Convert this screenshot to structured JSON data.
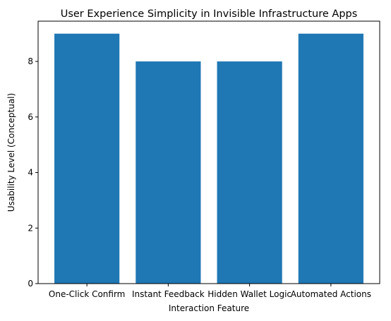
{
  "chart_data": {
    "type": "bar",
    "title": "User Experience Simplicity in Invisible Infrastructure Apps",
    "xlabel": "Interaction Feature",
    "ylabel": "Usability Level (Conceptual)",
    "categories": [
      "One-Click Confirm",
      "Instant Feedback",
      "Hidden Wallet Logic",
      "Automated Actions"
    ],
    "values": [
      9,
      8,
      8,
      9
    ],
    "ylim": [
      0,
      9.45
    ],
    "yticks": [
      0,
      2,
      4,
      6,
      8
    ],
    "bar_color": "#1f77b4",
    "grid": false,
    "legend": "none"
  }
}
